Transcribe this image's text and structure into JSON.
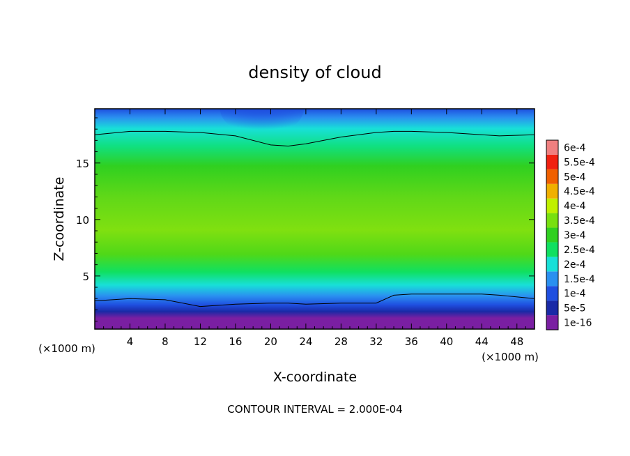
{
  "chart_data": {
    "type": "heatmap",
    "title": "density of cloud",
    "xlabel": "X-coordinate",
    "ylabel": "Z-coordinate",
    "x_unit": "(×1000 m)",
    "z_unit": "(×1000 m)",
    "footer": "CONTOUR INTERVAL = 2.000E-04",
    "xlim": [
      0,
      50
    ],
    "ylim": [
      0.3,
      19.8
    ],
    "x_ticks": [
      4,
      8,
      12,
      16,
      20,
      24,
      28,
      32,
      36,
      40,
      44,
      48
    ],
    "y_ticks": [
      5,
      10,
      15
    ],
    "colorbar": {
      "labels": [
        "1e-16",
        "5e-5",
        "1e-4",
        "1.5e-4",
        "2e-4",
        "2.5e-4",
        "3e-4",
        "3.5e-4",
        "4e-4",
        "4.5e-4",
        "5e-4",
        "5.5e-4",
        "6e-4"
      ],
      "colors": [
        "#7a1fa2",
        "#1a2aa6",
        "#1f4fe0",
        "#2a90f0",
        "#18e0d8",
        "#10e060",
        "#30d020",
        "#78e010",
        "#c0f000",
        "#f0b000",
        "#f06000",
        "#f02010",
        "#f08080"
      ]
    },
    "contour_levels_shown": [
      0.0001,
      0.0002
    ],
    "contour_z_at_x": {
      "x": [
        0,
        4,
        8,
        12,
        16,
        20,
        22,
        24,
        28,
        32,
        34,
        36,
        40,
        44,
        46,
        50
      ],
      "z_1e-4": [
        2.8,
        3.0,
        2.9,
        2.3,
        2.5,
        2.6,
        2.6,
        2.5,
        2.6,
        2.6,
        3.3,
        3.4,
        3.4,
        3.4,
        3.3,
        3.0
      ],
      "z_2e-4": [
        17.5,
        17.8,
        17.8,
        17.7,
        17.4,
        16.6,
        16.5,
        16.7,
        17.3,
        17.7,
        17.8,
        17.8,
        17.7,
        17.5,
        17.4,
        17.5
      ]
    },
    "density_by_height": {
      "z": [
        0.5,
        1.2,
        2.0,
        3.0,
        4.0,
        5.0,
        6.5,
        8.5,
        10.5,
        12.5,
        14.5,
        16.5,
        17.5,
        18.5,
        19.5
      ],
      "value": [
        1e-16,
        3e-05,
        8e-05,
        0.00016,
        0.00023,
        0.00027,
        0.00031,
        0.00036,
        0.00033,
        0.0003,
        0.00026,
        0.00022,
        0.00019,
        0.00014,
        0.0001
      ]
    }
  }
}
